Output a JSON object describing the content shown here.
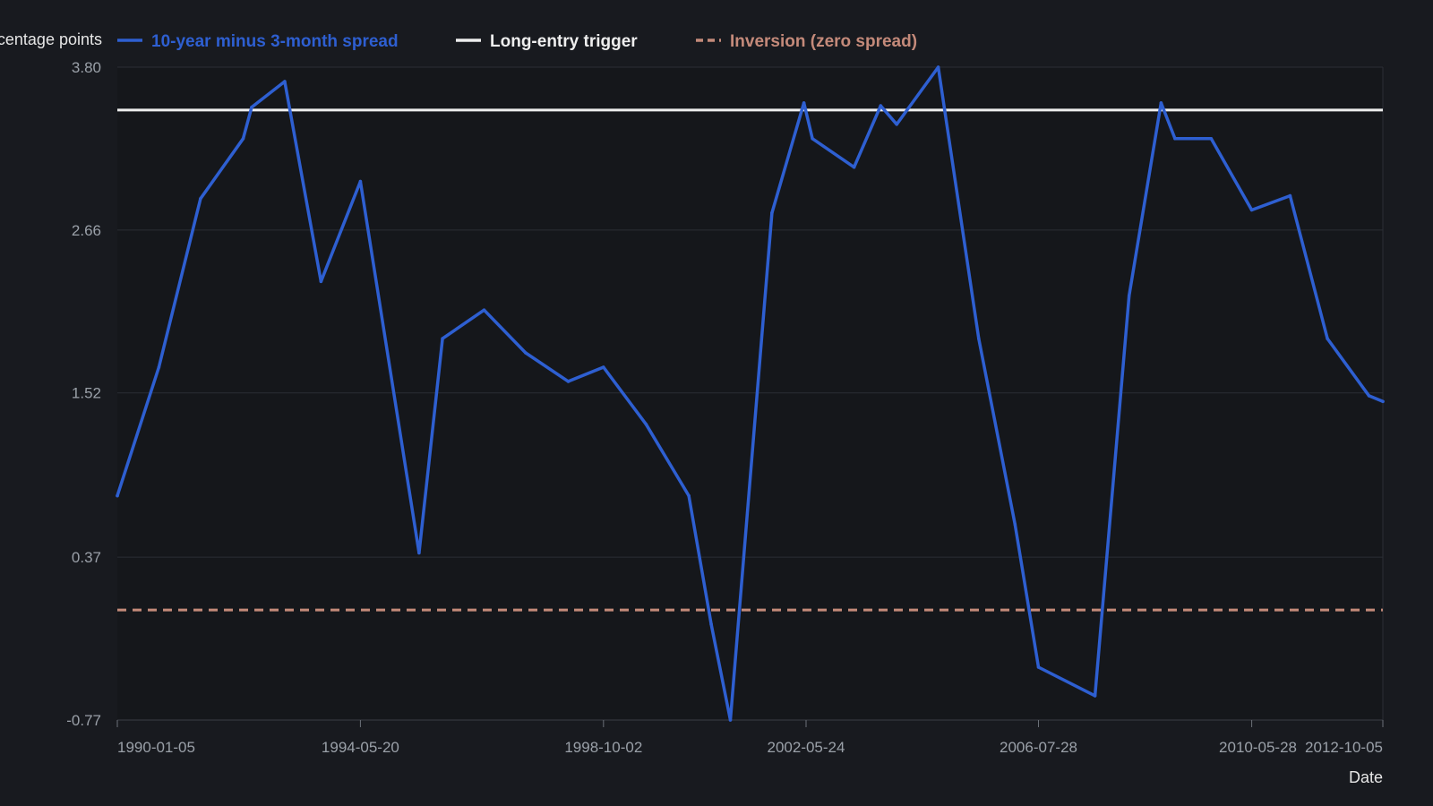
{
  "chart_data": {
    "type": "line",
    "ylabel": "Percentage points",
    "xlabel": "Date",
    "ylim": [
      -0.77,
      3.8
    ],
    "yticks": [
      "3.80",
      "2.66",
      "1.52",
      "0.37",
      "-0.77"
    ],
    "xticks": [
      "1990-01-05",
      "1994-05-20",
      "1998-10-02",
      "2002-05-24",
      "2006-07-28",
      "2010-05-28",
      "2012-10-05"
    ],
    "grid": true,
    "legend_position": "top",
    "series": [
      {
        "name": "10-year minus 3-month spread",
        "color": "#2e5fd1",
        "style": "solid",
        "points": [
          [
            "1990-01-05",
            0.8
          ],
          [
            "1990-10-05",
            1.7
          ],
          [
            "1991-07-05",
            2.88
          ],
          [
            "1992-04-10",
            3.3
          ],
          [
            "1992-06-05",
            3.52
          ],
          [
            "1993-01-08",
            3.7
          ],
          [
            "1993-09-03",
            2.3
          ],
          [
            "1994-05-20",
            3.0
          ],
          [
            "1995-06-09",
            0.4
          ],
          [
            "1995-11-10",
            1.9
          ],
          [
            "1996-08-09",
            2.1
          ],
          [
            "1997-05-09",
            1.8
          ],
          [
            "1998-02-13",
            1.6
          ],
          [
            "1998-10-02",
            1.7
          ],
          [
            "1999-07-09",
            1.3
          ],
          [
            "2000-04-14",
            0.8
          ],
          [
            "2000-09-08",
            -0.1
          ],
          [
            "2001-01-12",
            -0.77
          ],
          [
            "2001-10-12",
            2.78
          ],
          [
            "2002-05-10",
            3.55
          ],
          [
            "2002-07-05",
            3.3
          ],
          [
            "2003-04-04",
            3.1
          ],
          [
            "2003-09-26",
            3.53
          ],
          [
            "2004-01-09",
            3.4
          ],
          [
            "2004-10-08",
            3.8
          ],
          [
            "2005-07-01",
            1.9
          ],
          [
            "2006-02-24",
            0.6
          ],
          [
            "2006-07-28",
            -0.4
          ],
          [
            "2007-08-03",
            -0.6
          ],
          [
            "2008-03-14",
            2.2
          ],
          [
            "2008-10-10",
            3.55
          ],
          [
            "2009-01-09",
            3.3
          ],
          [
            "2009-09-04",
            3.3
          ],
          [
            "2010-05-28",
            2.8
          ],
          [
            "2011-02-04",
            2.9
          ],
          [
            "2011-10-07",
            1.9
          ],
          [
            "2012-07-06",
            1.5
          ],
          [
            "2012-10-05",
            1.46
          ]
        ]
      },
      {
        "name": "Long-entry trigger",
        "color": "#eeeeee",
        "style": "solid",
        "constant": 3.5
      },
      {
        "name": "Inversion (zero spread)",
        "color": "#c48a7a",
        "style": "dashed",
        "constant": 0.0
      }
    ]
  }
}
